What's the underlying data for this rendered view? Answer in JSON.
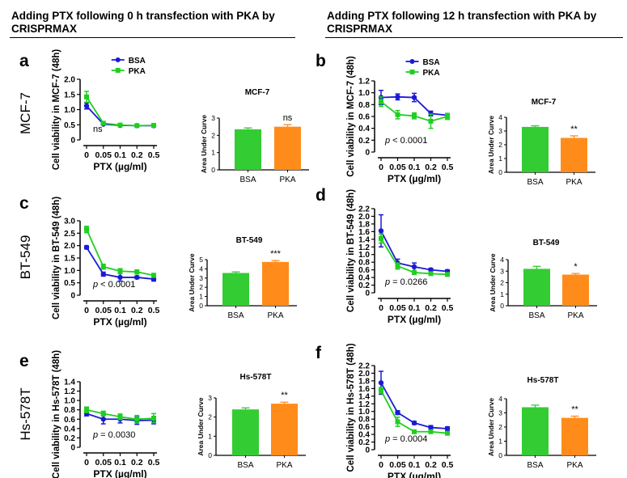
{
  "headers": {
    "left": "Adding PTX following 0 h transfection with PKA by CRISPRMAX",
    "right": "Adding PTX following 12 h transfection with PKA by CRISPRMAX"
  },
  "colors": {
    "bsa": "#1a1ad6",
    "pka_line": "#1fcf1f",
    "bsa_bar": "#33cc33",
    "pka_bar": "#ff8c1a"
  },
  "legend": [
    "BSA",
    "PKA"
  ],
  "chart_data": [
    {
      "type": "line",
      "panel": "a",
      "cell_line": "MCF-7",
      "row_label": "MCF-7",
      "ylabel": "Cell viability in MCF-7 (48h)",
      "xlabel": "PTX (µg/ml)",
      "categories": [
        "0",
        "0.05",
        "0.1",
        "0.2",
        "0.5"
      ],
      "ylim": [
        0,
        2.0
      ],
      "yticks": [
        0,
        0.5,
        1.0,
        1.5,
        2.0
      ],
      "ytick_labels": [
        "0",
        "0.5",
        "1.0",
        "1.5",
        "2.0"
      ],
      "series": [
        {
          "name": "BSA",
          "values": [
            1.12,
            0.52,
            0.48,
            0.47,
            0.47
          ],
          "errors": [
            0.1,
            0.02,
            0.02,
            0.02,
            0.02
          ]
        },
        {
          "name": "PKA",
          "values": [
            1.42,
            0.55,
            0.49,
            0.47,
            0.48
          ],
          "errors": [
            0.18,
            0.03,
            0.02,
            0.02,
            0.02
          ]
        }
      ],
      "pvalue": "ns",
      "show_legend": true
    },
    {
      "type": "bar",
      "panel": "a",
      "title": "MCF-7",
      "ylabel": "Area Under Curve",
      "categories": [
        "BSA",
        "PKA"
      ],
      "values": [
        2.35,
        2.5
      ],
      "errors": [
        0.08,
        0.12
      ],
      "ylim": [
        0,
        3
      ],
      "yticks": [
        0,
        1,
        2,
        3
      ],
      "ytick_labels": [
        "0",
        "1",
        "2",
        "3"
      ],
      "significance": "ns"
    },
    {
      "type": "line",
      "panel": "b",
      "cell_line": "MCF-7",
      "ylabel": "Cell viability in MCF-7 (48h)",
      "xlabel": "PTX (µg/ml)",
      "categories": [
        "0",
        "0.05",
        "0.1",
        "0.2",
        "0.5"
      ],
      "ylim": [
        0,
        1.2
      ],
      "yticks": [
        0,
        0.2,
        0.4,
        0.6,
        0.8,
        1.0,
        1.2
      ],
      "ytick_labels": [
        "0",
        "0.2",
        "0.4",
        "0.6",
        "0.8",
        "1.0",
        "1.2"
      ],
      "series": [
        {
          "name": "BSA",
          "values": [
            0.92,
            0.93,
            0.92,
            0.65,
            0.62
          ],
          "errors": [
            0.12,
            0.05,
            0.07,
            0.04,
            0.03
          ]
        },
        {
          "name": "PKA",
          "values": [
            0.85,
            0.63,
            0.61,
            0.52,
            0.6
          ],
          "errors": [
            0.08,
            0.07,
            0.05,
            0.12,
            0.05
          ]
        }
      ],
      "pvalue": "p < 0.0001",
      "show_legend": true
    },
    {
      "type": "bar",
      "panel": "b",
      "title": "MCF-7",
      "ylabel": "Area Under Curve",
      "categories": [
        "BSA",
        "PKA"
      ],
      "values": [
        3.3,
        2.5
      ],
      "errors": [
        0.08,
        0.15
      ],
      "ylim": [
        0,
        4
      ],
      "yticks": [
        0,
        1,
        2,
        3,
        4
      ],
      "ytick_labels": [
        "0",
        "1",
        "2",
        "3",
        "4"
      ],
      "significance": "**"
    },
    {
      "type": "line",
      "panel": "c",
      "cell_line": "BT-549",
      "row_label": "BT-549",
      "ylabel": "Cell viability in BT-549 (48h)",
      "xlabel": "PTX (µg/ml)",
      "categories": [
        "0",
        "0.05",
        "0.1",
        "0.2",
        "0.5"
      ],
      "ylim": [
        0,
        3.0
      ],
      "yticks": [
        0,
        0.5,
        1.0,
        1.5,
        2.0,
        2.5,
        3.0
      ],
      "ytick_labels": [
        "0",
        "0.5",
        "1.0",
        "1.5",
        "2.0",
        "2.5",
        "3.0"
      ],
      "series": [
        {
          "name": "BSA",
          "values": [
            1.93,
            0.85,
            0.72,
            0.72,
            0.65
          ],
          "errors": [
            0.06,
            0.08,
            0.15,
            0.05,
            0.08
          ]
        },
        {
          "name": "PKA",
          "values": [
            2.65,
            1.15,
            0.97,
            0.94,
            0.8
          ],
          "errors": [
            0.13,
            0.1,
            0.1,
            0.08,
            0.08
          ]
        }
      ],
      "pvalue": "p < 0.0001",
      "show_legend": false
    },
    {
      "type": "bar",
      "panel": "c",
      "title": "BT-549",
      "ylabel": "Area Under Curve",
      "categories": [
        "BSA",
        "PKA"
      ],
      "values": [
        3.55,
        4.75
      ],
      "errors": [
        0.12,
        0.15
      ],
      "ylim": [
        0,
        5
      ],
      "yticks": [
        0,
        1,
        2,
        3,
        4,
        5
      ],
      "ytick_labels": [
        "0",
        "1",
        "2",
        "3",
        "4",
        "5"
      ],
      "significance": "***"
    },
    {
      "type": "line",
      "panel": "d",
      "cell_line": "BT-549",
      "ylabel": "Cell viability in BT-549 (48h)",
      "xlabel": "PTX (µg/ml)",
      "categories": [
        "0",
        "0.05",
        "0.1",
        "0.2",
        "0.5"
      ],
      "ylim": [
        0,
        2.2
      ],
      "yticks": [
        0,
        0.2,
        0.4,
        0.6,
        0.8,
        1.0,
        1.2,
        1.4,
        1.6,
        1.8,
        2.0,
        2.2
      ],
      "ytick_labels": [
        "0",
        "0.2",
        "0.4",
        "0.6",
        "0.8",
        "1.0",
        "1.2",
        "1.4",
        "1.6",
        "1.8",
        "2.0",
        "2.2"
      ],
      "series": [
        {
          "name": "BSA",
          "values": [
            1.62,
            0.78,
            0.68,
            0.6,
            0.56
          ],
          "errors": [
            0.42,
            0.1,
            0.1,
            0.04,
            0.04
          ]
        },
        {
          "name": "PKA",
          "values": [
            1.42,
            0.7,
            0.53,
            0.5,
            0.48
          ],
          "errors": [
            0.12,
            0.08,
            0.05,
            0.04,
            0.04
          ]
        }
      ],
      "pvalue": "p = 0.0266",
      "show_legend": false
    },
    {
      "type": "bar",
      "panel": "d",
      "title": "BT-549",
      "ylabel": "Area Under Curve",
      "categories": [
        "BSA",
        "PKA"
      ],
      "values": [
        3.2,
        2.7
      ],
      "errors": [
        0.22,
        0.1
      ],
      "ylim": [
        0,
        4
      ],
      "yticks": [
        0,
        1,
        2,
        3,
        4
      ],
      "ytick_labels": [
        "0",
        "1",
        "2",
        "3",
        "4"
      ],
      "significance": "*"
    },
    {
      "type": "line",
      "panel": "e",
      "cell_line": "Hs-578T",
      "row_label": "Hs-578T",
      "ylabel": "Cell viability in Hs-578T (48h)",
      "xlabel": "PTX (µg/ml)",
      "categories": [
        "0",
        "0.05",
        "0.1",
        "0.2",
        "0.5"
      ],
      "ylim": [
        0,
        1.4
      ],
      "yticks": [
        0,
        0.2,
        0.4,
        0.6,
        0.8,
        1.0,
        1.2,
        1.4
      ],
      "ytick_labels": [
        "0",
        "0.2",
        "0.4",
        "0.6",
        "0.8",
        "1.0",
        "1.2",
        "1.4"
      ],
      "series": [
        {
          "name": "BSA",
          "values": [
            0.72,
            0.6,
            0.6,
            0.57,
            0.58
          ],
          "errors": [
            0.05,
            0.1,
            0.08,
            0.08,
            0.08
          ]
        },
        {
          "name": "PKA",
          "values": [
            0.8,
            0.72,
            0.65,
            0.6,
            0.62
          ],
          "errors": [
            0.06,
            0.05,
            0.06,
            0.08,
            0.1
          ]
        }
      ],
      "pvalue": "p = 0.0030",
      "show_legend": false
    },
    {
      "type": "bar",
      "panel": "e",
      "title": "Hs-578T",
      "ylabel": "Area Under Curve",
      "categories": [
        "BSA",
        "PKA"
      ],
      "values": [
        2.4,
        2.7
      ],
      "errors": [
        0.08,
        0.08
      ],
      "ylim": [
        0,
        3
      ],
      "yticks": [
        0,
        1,
        2,
        3
      ],
      "ytick_labels": [
        "0",
        "1",
        "2",
        "3"
      ],
      "significance": "**"
    },
    {
      "type": "line",
      "panel": "f",
      "cell_line": "Hs-578T",
      "ylabel": "Cell viability in Hs-578T (48h)",
      "xlabel": "PTX (µg/ml)",
      "categories": [
        "0",
        "0.05",
        "0.1",
        "0.2",
        "0.5"
      ],
      "ylim": [
        0,
        2.2
      ],
      "yticks": [
        0,
        0.2,
        0.4,
        0.6,
        0.8,
        1.0,
        1.2,
        1.4,
        1.6,
        1.8,
        2.0,
        2.2
      ],
      "ytick_labels": [
        "0",
        "0.2",
        "0.4",
        "0.6",
        "0.8",
        "1.0",
        "1.2",
        "1.4",
        "1.6",
        "1.8",
        "2.0",
        "2.2"
      ],
      "series": [
        {
          "name": "BSA",
          "values": [
            1.75,
            0.97,
            0.7,
            0.58,
            0.55
          ],
          "errors": [
            0.3,
            0.05,
            0.04,
            0.05,
            0.05
          ]
        },
        {
          "name": "PKA",
          "values": [
            1.55,
            0.73,
            0.47,
            0.47,
            0.43
          ],
          "errors": [
            0.08,
            0.12,
            0.04,
            0.04,
            0.04
          ]
        }
      ],
      "pvalue": "p = 0.0004",
      "show_legend": false
    },
    {
      "type": "bar",
      "panel": "f",
      "title": "Hs-578T",
      "ylabel": "Area Under Curve",
      "categories": [
        "BSA",
        "PKA"
      ],
      "values": [
        3.4,
        2.65
      ],
      "errors": [
        0.15,
        0.12
      ],
      "ylim": [
        0,
        4
      ],
      "yticks": [
        0,
        1,
        2,
        3,
        4
      ],
      "ytick_labels": [
        "0",
        "1",
        "2",
        "3",
        "4"
      ],
      "significance": "**"
    }
  ]
}
